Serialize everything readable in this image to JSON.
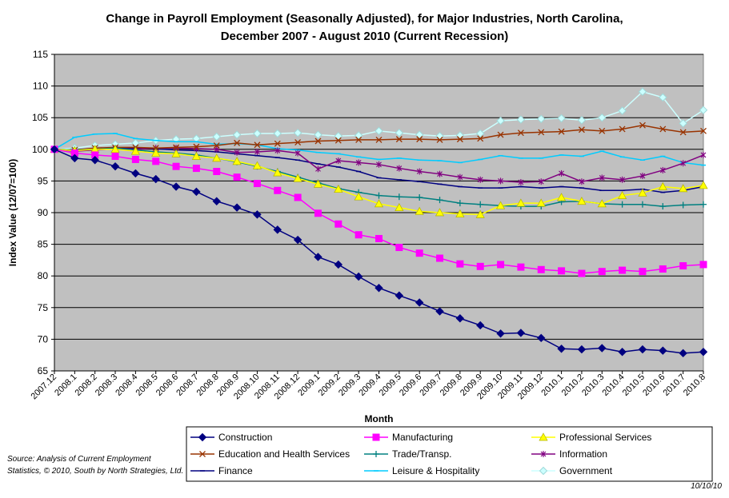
{
  "chart_data": {
    "type": "line",
    "title_line1": "Change in Payroll Employment (Seasonally Adjusted), for Major Industries, North Carolina,",
    "title_line2": "December 2007 -  August 2010 (Current Recession)",
    "xlabel": "Month",
    "ylabel": "Index Value (12/07=100)",
    "ylim": [
      65,
      115
    ],
    "yticks": [
      65,
      70,
      75,
      80,
      85,
      90,
      95,
      100,
      105,
      110,
      115
    ],
    "grid": true,
    "legend_position": "bottom",
    "categories": [
      "2007.12",
      "2008.1",
      "2008.2",
      "2008.3",
      "2008.4",
      "2008.5",
      "2008.6",
      "2008.7",
      "2008.8",
      "2008.9",
      "2008.10",
      "2008.11",
      "2008.12",
      "2009.1",
      "2009.2",
      "2009.3",
      "2009.4",
      "2009.5",
      "2009.6",
      "2009.7",
      "2009.8",
      "2009.9",
      "2009.10",
      "2009.11",
      "2009.12",
      "2010.1",
      "2010.2",
      "2010.3",
      "2010.4",
      "2010.5",
      "2010.6",
      "2010.7",
      "2010.8"
    ],
    "series": [
      {
        "name": "Construction",
        "color": "#000080",
        "marker": "diamond",
        "values": [
          100,
          98.6,
          98.3,
          97.3,
          96.2,
          95.3,
          94.1,
          93.3,
          91.8,
          90.8,
          89.7,
          87.3,
          85.7,
          83.0,
          81.8,
          79.9,
          78.1,
          76.9,
          75.8,
          74.4,
          73.3,
          72.2,
          70.9,
          71.0,
          70.2,
          68.5,
          68.4,
          68.6,
          68.0,
          68.4,
          68.2,
          67.8,
          68.0
        ]
      },
      {
        "name": "Manufacturing",
        "color": "#FF00FF",
        "marker": "square",
        "values": [
          100,
          99.4,
          99.1,
          98.9,
          98.4,
          98.1,
          97.3,
          97.0,
          96.5,
          95.6,
          94.6,
          93.5,
          92.4,
          89.9,
          88.2,
          86.5,
          85.9,
          84.5,
          83.6,
          82.8,
          81.9,
          81.5,
          81.8,
          81.4,
          81.0,
          80.8,
          80.4,
          80.7,
          80.9,
          80.7,
          81.1,
          81.6,
          81.8
        ]
      },
      {
        "name": "Professional Services",
        "color": "#FFFF00",
        "marker": "triangle",
        "values": [
          100,
          99.8,
          100.0,
          100.0,
          99.7,
          99.4,
          99.3,
          98.9,
          98.6,
          98.1,
          97.4,
          96.3,
          95.4,
          94.5,
          93.7,
          92.5,
          91.4,
          90.8,
          90.2,
          90.0,
          89.8,
          89.7,
          91.1,
          91.5,
          91.5,
          92.4,
          91.8,
          91.4,
          92.7,
          93.1,
          94.1,
          93.8,
          94.3
        ]
      },
      {
        "name": "Education and Health Services",
        "color": "#993300",
        "marker": "x",
        "values": [
          100,
          99.9,
          100.2,
          100.3,
          100.3,
          100.2,
          100.3,
          100.4,
          100.6,
          101.0,
          100.7,
          100.9,
          101.1,
          101.3,
          101.4,
          101.5,
          101.5,
          101.6,
          101.6,
          101.5,
          101.6,
          101.7,
          102.3,
          102.6,
          102.7,
          102.8,
          103.1,
          102.9,
          103.2,
          103.8,
          103.2,
          102.7,
          102.9
        ]
      },
      {
        "name": "Trade/Transp.",
        "color": "#008080",
        "marker": "plus",
        "values": [
          100,
          99.9,
          100.0,
          100.2,
          99.9,
          99.6,
          99.4,
          99.1,
          98.6,
          98.0,
          97.3,
          96.5,
          95.6,
          94.7,
          93.8,
          93.2,
          92.7,
          92.5,
          92.4,
          92.0,
          91.5,
          91.3,
          91.1,
          91.0,
          91.0,
          91.7,
          91.8,
          91.4,
          91.3,
          91.3,
          91.0,
          91.2,
          91.3
        ]
      },
      {
        "name": "Information",
        "color": "#800080",
        "marker": "star",
        "values": [
          100,
          99.7,
          99.9,
          100.1,
          100.0,
          100.2,
          100.2,
          100.1,
          100.0,
          99.5,
          99.6,
          99.8,
          99.4,
          96.9,
          98.2,
          97.9,
          97.6,
          97.0,
          96.5,
          96.1,
          95.6,
          95.2,
          95.0,
          94.8,
          94.9,
          96.2,
          94.9,
          95.5,
          95.2,
          95.8,
          96.7,
          97.8,
          99.1
        ]
      },
      {
        "name": "Finance",
        "color": "#000080",
        "marker": "dash",
        "values": [
          100,
          99.9,
          100.1,
          100.2,
          100.2,
          100.1,
          99.9,
          99.8,
          99.6,
          99.3,
          99.0,
          98.7,
          98.3,
          97.7,
          97.2,
          96.5,
          95.5,
          95.2,
          94.9,
          94.5,
          94.1,
          93.9,
          93.9,
          94.1,
          93.9,
          94.1,
          93.9,
          93.5,
          93.5,
          93.7,
          93.2,
          93.5,
          94.1
        ]
      },
      {
        "name": "Leisure & Hospitality",
        "color": "#00CCFF",
        "marker": "dash",
        "values": [
          100,
          101.9,
          102.4,
          102.5,
          101.7,
          101.4,
          101.2,
          101.2,
          100.8,
          100.9,
          100.7,
          100.1,
          99.9,
          99.5,
          99.3,
          98.8,
          98.4,
          98.6,
          98.3,
          98.2,
          97.9,
          98.4,
          99.0,
          98.6,
          98.6,
          99.1,
          98.9,
          99.7,
          98.8,
          98.3,
          98.9,
          97.9,
          97.5
        ]
      },
      {
        "name": "Government",
        "color": "#CCFFFF",
        "marker": "diamond",
        "values": [
          100,
          100.2,
          100.6,
          100.8,
          101.0,
          101.4,
          101.6,
          101.7,
          102.0,
          102.3,
          102.5,
          102.5,
          102.6,
          102.3,
          102.1,
          102.2,
          102.9,
          102.6,
          102.3,
          102.1,
          102.2,
          102.5,
          104.5,
          104.7,
          104.8,
          104.9,
          104.6,
          105.0,
          106.1,
          109.1,
          108.2,
          104.1,
          106.2
        ]
      }
    ]
  },
  "footer": {
    "source": "Source: Analysis of Current Employment Statistics, © 2010, South by North Strategies, Ltd.",
    "date": "10/10/10"
  }
}
